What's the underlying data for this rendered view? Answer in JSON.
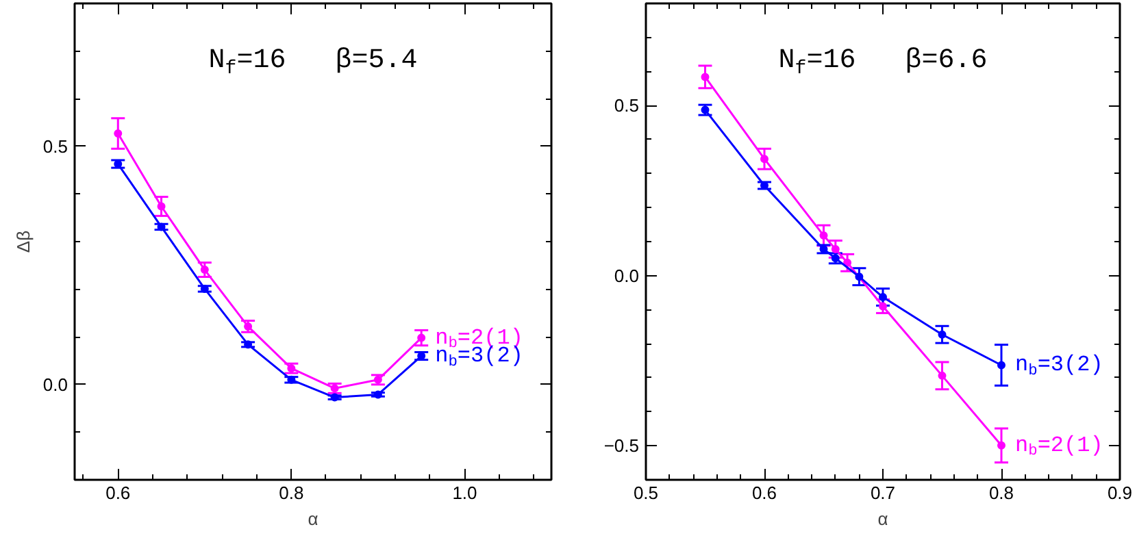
{
  "chart_data": [
    {
      "type": "line",
      "title": "N$_{f}$=16   β=5.4",
      "xlabel": "α",
      "ylabel": "Δβ",
      "x": [
        0.6,
        0.65,
        0.7,
        0.75,
        0.8,
        0.85,
        0.9,
        0.95
      ],
      "series": [
        {
          "name": "n$_{b}$=2(1)",
          "color": "#ff00ff",
          "values": [
            0.527,
            0.374,
            0.241,
            0.122,
            0.034,
            -0.008,
            0.01,
            0.098
          ],
          "errors": [
            0.032,
            0.02,
            0.015,
            0.012,
            0.01,
            0.01,
            0.01,
            0.016
          ]
        },
        {
          "name": "n$_{b}$=3(2)",
          "color": "#0000ff",
          "values": [
            0.463,
            0.331,
            0.201,
            0.084,
            0.01,
            -0.027,
            -0.021,
            0.06
          ],
          "errors": [
            0.008,
            0.006,
            0.006,
            0.005,
            0.006,
            0.004,
            0.004,
            0.008
          ]
        }
      ],
      "xlim": [
        0.55,
        1.1
      ],
      "ylim": [
        -0.2,
        0.8
      ],
      "xticks": [
        {
          "value": 0.56,
          "label": null
        },
        {
          "value": 0.6,
          "label": "0.6"
        },
        {
          "value": 0.64,
          "label": null
        },
        {
          "value": 0.68,
          "label": null
        },
        {
          "value": 0.72,
          "label": null
        },
        {
          "value": 0.76,
          "label": null
        },
        {
          "value": 0.8,
          "label": "0.8"
        },
        {
          "value": 0.84,
          "label": null
        },
        {
          "value": 0.88,
          "label": null
        },
        {
          "value": 0.92,
          "label": null
        },
        {
          "value": 0.96,
          "label": null
        },
        {
          "value": 1.0,
          "label": "1.0"
        },
        {
          "value": 1.04,
          "label": null
        },
        {
          "value": 1.08,
          "label": null
        }
      ],
      "yticks": [
        {
          "value": -0.1,
          "label": null
        },
        {
          "value": 0.0,
          "label": "0.0"
        },
        {
          "value": 0.1,
          "label": null
        },
        {
          "value": 0.2,
          "label": null
        },
        {
          "value": 0.3,
          "label": null
        },
        {
          "value": 0.4,
          "label": null
        },
        {
          "value": 0.5,
          "label": "0.5"
        },
        {
          "value": 0.6,
          "label": null
        },
        {
          "value": 0.7,
          "label": null
        }
      ],
      "marker": "circle",
      "grid": false,
      "legend": false
    },
    {
      "type": "line",
      "title": "N$_{f}$=16   β=6.6",
      "xlabel": "α",
      "series": [
        {
          "name": "n$_{b}$=2(1)",
          "color": "#ff00ff",
          "x": [
            0.55,
            0.6,
            0.65,
            0.66,
            0.67,
            0.7,
            0.75,
            0.8
          ],
          "values": [
            0.584,
            0.343,
            0.118,
            0.078,
            0.038,
            -0.09,
            -0.294,
            -0.499
          ],
          "errors": [
            0.033,
            0.03,
            0.03,
            0.025,
            0.025,
            0.02,
            0.04,
            0.05
          ]
        },
        {
          "name": "n$_{b}$=3(2)",
          "color": "#0000ff",
          "x": [
            0.55,
            0.6,
            0.65,
            0.66,
            0.68,
            0.7,
            0.75,
            0.8
          ],
          "values": [
            0.487,
            0.265,
            0.078,
            0.051,
            -0.003,
            -0.063,
            -0.173,
            -0.263
          ],
          "errors": [
            0.015,
            0.01,
            0.012,
            0.015,
            0.025,
            0.025,
            0.025,
            0.06
          ]
        }
      ],
      "xlim": [
        0.5,
        0.9
      ],
      "ylim": [
        -0.6,
        0.8
      ],
      "xticks": [
        0.5,
        {
          "value": 0.52,
          "label": null
        },
        {
          "value": 0.54,
          "label": null
        },
        {
          "value": 0.56,
          "label": null
        },
        {
          "value": 0.58,
          "label": null
        },
        0.6,
        {
          "value": 0.62,
          "label": null
        },
        {
          "value": 0.64,
          "label": null
        },
        {
          "value": 0.66,
          "label": null
        },
        {
          "value": 0.68,
          "label": null
        },
        0.7,
        {
          "value": 0.72,
          "label": null
        },
        {
          "value": 0.74,
          "label": null
        },
        {
          "value": 0.76,
          "label": null
        },
        {
          "value": 0.78,
          "label": null
        },
        0.8,
        {
          "value": 0.82,
          "label": null
        },
        {
          "value": 0.84,
          "label": null
        },
        {
          "value": 0.86,
          "label": null
        },
        {
          "value": 0.88,
          "label": null
        },
        0.9
      ],
      "yticks": [
        {
          "value": -0.5,
          "label": "−0.5"
        },
        {
          "value": -0.4,
          "label": null
        },
        {
          "value": -0.3,
          "label": null
        },
        {
          "value": -0.2,
          "label": null
        },
        {
          "value": -0.1,
          "label": null
        },
        {
          "value": 0.0,
          "label": "0.0"
        },
        {
          "value": 0.1,
          "label": null
        },
        {
          "value": 0.2,
          "label": null
        },
        {
          "value": 0.3,
          "label": null
        },
        {
          "value": 0.4,
          "label": null
        },
        {
          "value": 0.5,
          "label": "0.5"
        },
        {
          "value": 0.6,
          "label": null
        },
        {
          "value": 0.7,
          "label": null
        }
      ],
      "marker": "circle",
      "grid": false,
      "legend": false
    }
  ]
}
